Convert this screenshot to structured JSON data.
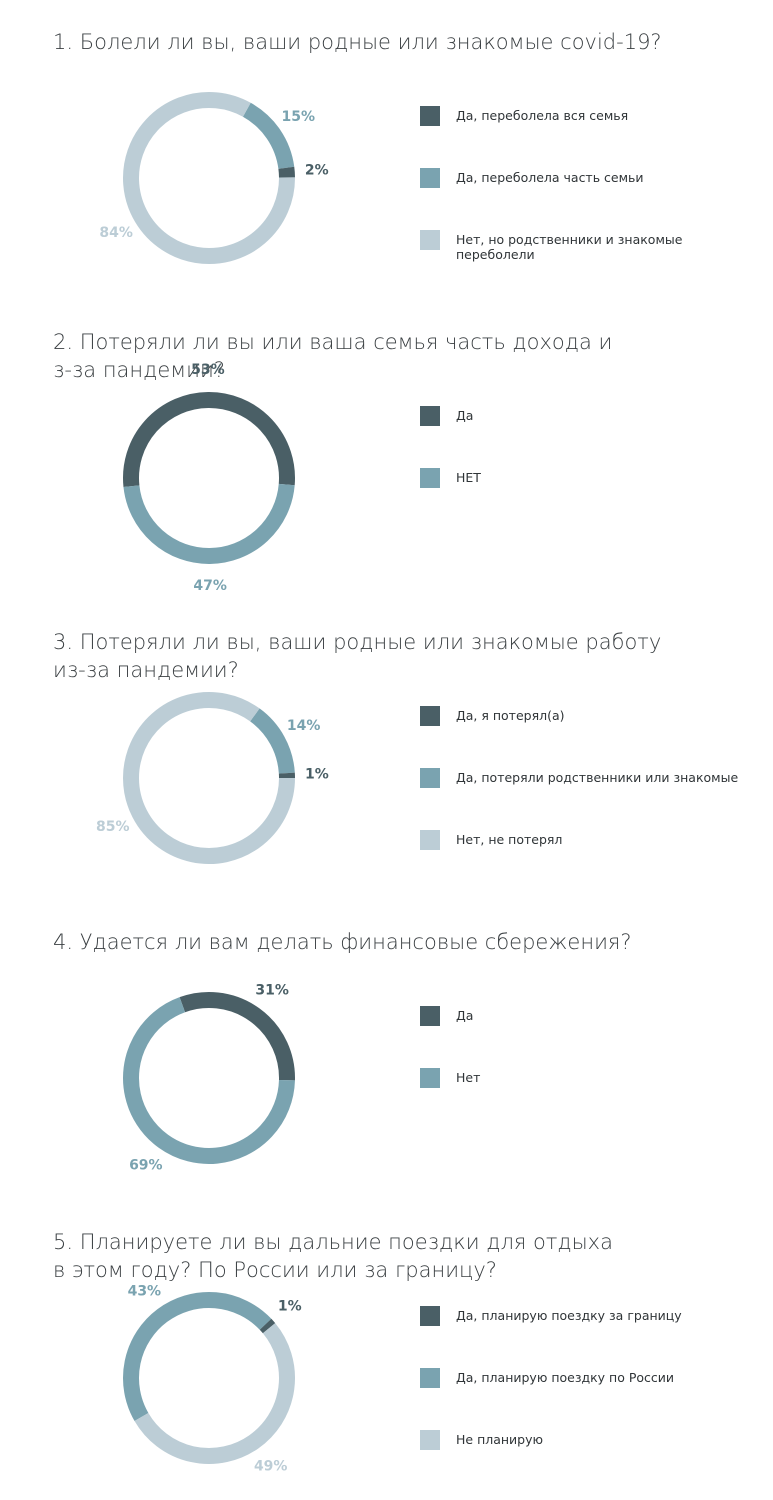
{
  "chart_data": [
    {
      "type": "pie",
      "title": [
        "1. Болели ли вы, ваши родные или знакомые covid-19?"
      ],
      "categories": [
        "Да, переболела вся семья",
        "Да, переболела часть семьи",
        "Нет, но родственники и знакомые переболели"
      ],
      "values": [
        2,
        15,
        84
      ],
      "value_labels": [
        "2%",
        "15%",
        "84%"
      ],
      "colors": [
        "#4a5f66",
        "#7aa3b0",
        "#bccdd6"
      ]
    },
    {
      "type": "pie",
      "title": [
        "2. Потеряли ли вы или ваша семья часть дохода и",
        "з-за пандемии?"
      ],
      "categories": [
        "Да",
        "НЕТ"
      ],
      "values": [
        53,
        47
      ],
      "value_labels": [
        "53%",
        "47%"
      ],
      "colors": [
        "#4a5f66",
        "#7aa3b0"
      ]
    },
    {
      "type": "pie",
      "title": [
        "3. Потеряли ли вы, ваши родные или знакомые работу",
        "из-за пандемии?"
      ],
      "categories": [
        "Да, я потерял(а)",
        "Да, потеряли родственники или знакомые",
        "Нет, не потерял"
      ],
      "values": [
        1,
        14,
        85
      ],
      "value_labels": [
        "1%",
        "14%",
        "85%"
      ],
      "colors": [
        "#4a5f66",
        "#7aa3b0",
        "#bccdd6"
      ]
    },
    {
      "type": "pie",
      "title": [
        "4. Удается ли вам делать финансовые сбережения?"
      ],
      "categories": [
        "Да",
        "Нет"
      ],
      "values": [
        31,
        69
      ],
      "value_labels": [
        "31%",
        "69%"
      ],
      "colors": [
        "#4a5f66",
        "#7aa3b0"
      ]
    },
    {
      "type": "pie",
      "title": [
        "5. Планируете ли вы дальние поездки для отдыха",
        "в этом году? По России или за границу?"
      ],
      "categories": [
        "Да, планирую поездку за границу",
        "Да, планирую поездку по России",
        "Не планирую"
      ],
      "values": [
        1,
        43,
        49
      ],
      "value_labels": [
        "1%",
        "43%",
        "49%"
      ],
      "colors": [
        "#4a5f66",
        "#7aa3b0",
        "#bccdd6"
      ]
    }
  ]
}
